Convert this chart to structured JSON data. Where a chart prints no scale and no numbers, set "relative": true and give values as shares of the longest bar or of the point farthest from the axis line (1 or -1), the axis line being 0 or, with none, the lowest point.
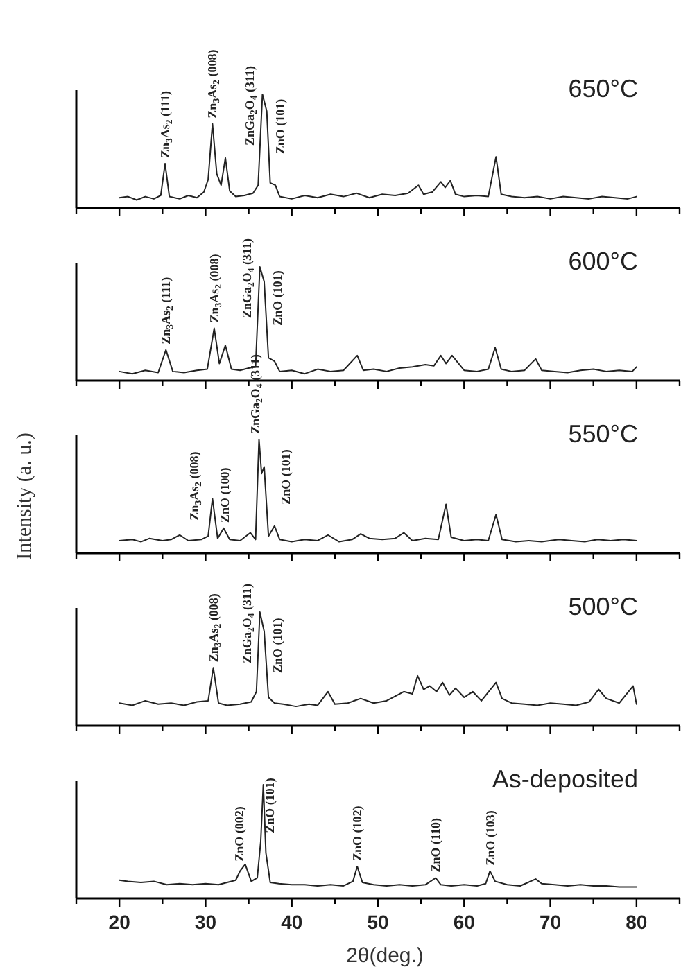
{
  "chart_data": [
    {
      "type": "line",
      "relative": true,
      "title": "650°C",
      "tick_labels": false,
      "xlim": [
        15,
        85
      ],
      "xticks": [
        {
          "value": 15,
          "label": null
        },
        20,
        {
          "value": 25,
          "label": null
        },
        30,
        {
          "value": 35,
          "label": null
        },
        40,
        {
          "value": 45,
          "label": null
        },
        50,
        {
          "value": 55,
          "label": null
        },
        60,
        {
          "value": 65,
          "label": null
        },
        70,
        {
          "value": 75,
          "label": null
        },
        80,
        {
          "value": 85,
          "label": null
        }
      ],
      "x": [
        20,
        21,
        22,
        23,
        24,
        24.8,
        25.3,
        25.8,
        27,
        28,
        29,
        29.8,
        30.3,
        30.8,
        31.3,
        31.8,
        32.3,
        32.8,
        33.5,
        34.5,
        35.5,
        36.1,
        36.6,
        37.1,
        37.5,
        38.1,
        38.6,
        40,
        41.5,
        43,
        44.5,
        46,
        47.5,
        49,
        50.5,
        52,
        53.5,
        54.7,
        55.3,
        56.3,
        57.3,
        57.8,
        58.4,
        59,
        60,
        61.5,
        62.8,
        63.7,
        64.3,
        65.5,
        67,
        68.5,
        70,
        71.5,
        73,
        74.5,
        76,
        77.5,
        79,
        80
      ],
      "series": [
        {
          "color": "#222222",
          "values": [
            0.09,
            0.1,
            0.07,
            0.1,
            0.08,
            0.11,
            0.39,
            0.1,
            0.08,
            0.11,
            0.09,
            0.14,
            0.25,
            0.74,
            0.3,
            0.2,
            0.44,
            0.15,
            0.1,
            0.11,
            0.13,
            0.2,
            1,
            0.85,
            0.22,
            0.2,
            0.1,
            0.08,
            0.11,
            0.09,
            0.12,
            0.1,
            0.13,
            0.09,
            0.12,
            0.11,
            0.13,
            0.2,
            0.12,
            0.14,
            0.23,
            0.18,
            0.24,
            0.12,
            0.1,
            0.11,
            0.1,
            0.45,
            0.12,
            0.1,
            0.09,
            0.1,
            0.08,
            0.1,
            0.09,
            0.08,
            0.1,
            0.09,
            0.08,
            0.1
          ]
        }
      ],
      "annotations": [
        {
          "text": "Zn$_{3}$As$_{2}$ (111)",
          "x": 25.3,
          "y": 0.39
        },
        {
          "text": "Zn$_{3}$As$_{2}$ (008)",
          "x": 30.8,
          "y": 0.74
        },
        {
          "text": "ZnGa$_{2}$O$_{4}$ (311)",
          "x": 36.6,
          "y": 1
        },
        {
          "text": "ZnO (101)",
          "x": 37.1,
          "y": 0.85
        }
      ]
    },
    {
      "type": "line",
      "relative": true,
      "title": "600°C",
      "tick_labels": false,
      "xlim": [
        15,
        85
      ],
      "xticks": [
        {
          "value": 15,
          "label": null
        },
        20,
        {
          "value": 25,
          "label": null
        },
        30,
        {
          "value": 35,
          "label": null
        },
        40,
        {
          "value": 45,
          "label": null
        },
        50,
        {
          "value": 55,
          "label": null
        },
        60,
        {
          "value": 65,
          "label": null
        },
        70,
        {
          "value": 75,
          "label": null
        },
        80,
        {
          "value": 85,
          "label": null
        }
      ],
      "x": [
        20,
        21.5,
        23,
        24.5,
        25.4,
        26.2,
        27.5,
        29,
        30.2,
        31,
        31.6,
        32.3,
        33,
        34,
        35,
        35.8,
        36.3,
        36.8,
        37.3,
        38,
        38.6,
        40,
        41.5,
        43,
        44.5,
        46,
        47.6,
        48.3,
        49.5,
        51,
        52.5,
        54,
        55.5,
        56.5,
        57.3,
        57.9,
        58.6,
        60,
        61.5,
        62.8,
        63.6,
        64.3,
        65.5,
        67,
        68.3,
        69,
        70.5,
        72,
        73.5,
        75,
        76.5,
        78,
        79.5,
        80
      ],
      "series": [
        {
          "color": "#222222",
          "values": [
            0.08,
            0.06,
            0.09,
            0.07,
            0.27,
            0.08,
            0.07,
            0.09,
            0.1,
            0.46,
            0.15,
            0.31,
            0.1,
            0.09,
            0.11,
            0.12,
            1,
            0.87,
            0.2,
            0.17,
            0.08,
            0.09,
            0.06,
            0.1,
            0.08,
            0.09,
            0.22,
            0.09,
            0.1,
            0.08,
            0.11,
            0.12,
            0.14,
            0.13,
            0.22,
            0.15,
            0.22,
            0.09,
            0.08,
            0.1,
            0.29,
            0.1,
            0.08,
            0.09,
            0.19,
            0.09,
            0.08,
            0.07,
            0.09,
            0.1,
            0.08,
            0.09,
            0.08,
            0.12
          ]
        }
      ],
      "annotations": [
        {
          "text": "Zn$_{3}$As$_{2}$ (111)",
          "x": 25.4,
          "y": 0.27
        },
        {
          "text": "Zn$_{3}$As$_{2}$ (008)",
          "x": 31,
          "y": 0.46
        },
        {
          "text": "ZnGa$_{2}$O$_{4}$ (311)",
          "x": 36.3,
          "y": 1
        },
        {
          "text": "ZnO (101)",
          "x": 36.8,
          "y": 0.87
        }
      ]
    },
    {
      "type": "line",
      "relative": true,
      "title": "550°C",
      "ylabel": "Intensity (a. u.)",
      "tick_labels": false,
      "xlim": [
        15,
        85
      ],
      "xticks": [
        {
          "value": 15,
          "label": null
        },
        20,
        {
          "value": 25,
          "label": null
        },
        30,
        {
          "value": 35,
          "label": null
        },
        40,
        {
          "value": 45,
          "label": null
        },
        50,
        {
          "value": 55,
          "label": null
        },
        60,
        {
          "value": 65,
          "label": null
        },
        70,
        {
          "value": 75,
          "label": null
        },
        80,
        {
          "value": 85,
          "label": null
        }
      ],
      "x": [
        20,
        21.5,
        22.5,
        23.5,
        25,
        26,
        27,
        28,
        29.5,
        30.3,
        30.8,
        31.4,
        32.1,
        32.8,
        34,
        35.2,
        35.8,
        36.2,
        36.5,
        36.8,
        37.3,
        38,
        38.6,
        40,
        41.5,
        43,
        44.2,
        45.5,
        47,
        48,
        49,
        50.5,
        52,
        53,
        54,
        55.5,
        57,
        57.9,
        58.5,
        60,
        61.5,
        62.8,
        63.7,
        64.4,
        66,
        67.5,
        69,
        71,
        72.5,
        74,
        75.5,
        77,
        78.5,
        80
      ],
      "series": [
        {
          "color": "#222222",
          "values": [
            0.11,
            0.12,
            0.1,
            0.13,
            0.11,
            0.12,
            0.16,
            0.11,
            0.12,
            0.15,
            0.48,
            0.13,
            0.22,
            0.12,
            0.11,
            0.18,
            0.12,
            1,
            0.7,
            0.76,
            0.15,
            0.24,
            0.12,
            0.1,
            0.12,
            0.11,
            0.16,
            0.1,
            0.12,
            0.17,
            0.13,
            0.12,
            0.13,
            0.18,
            0.11,
            0.13,
            0.12,
            0.43,
            0.14,
            0.11,
            0.12,
            0.11,
            0.34,
            0.12,
            0.1,
            0.11,
            0.1,
            0.12,
            0.11,
            0.1,
            0.12,
            0.11,
            0.12,
            0.11
          ]
        }
      ],
      "annotations": [
        {
          "text": "Zn$_{3}$As$_{2}$ (008)",
          "x": 30.8,
          "y": 0.48
        },
        {
          "text": "ZnO (100)",
          "x": 32.1,
          "y": 0.22
        },
        {
          "text": "ZnGa$_{2}$O$_{4}$ (311)",
          "x": 36.2,
          "y": 1
        },
        {
          "text": "ZnO (101)",
          "x": 36.8,
          "y": 0.76
        }
      ]
    },
    {
      "type": "line",
      "relative": true,
      "title": "500°C",
      "tick_labels": false,
      "xlim": [
        15,
        85
      ],
      "xticks": [
        {
          "value": 15,
          "label": null
        },
        20,
        {
          "value": 25,
          "label": null
        },
        30,
        {
          "value": 35,
          "label": null
        },
        40,
        {
          "value": 45,
          "label": null
        },
        50,
        {
          "value": 55,
          "label": null
        },
        60,
        {
          "value": 65,
          "label": null
        },
        70,
        {
          "value": 75,
          "label": null
        },
        80,
        {
          "value": 85,
          "label": null
        }
      ],
      "x": [
        20,
        21.5,
        23,
        24.5,
        26,
        27.5,
        29,
        30.3,
        30.9,
        31.5,
        32.5,
        34,
        35.3,
        35.9,
        36.3,
        36.8,
        37.3,
        38,
        39,
        40.5,
        42,
        43,
        44.2,
        45,
        46.5,
        48,
        49.5,
        51,
        52,
        53,
        54,
        54.6,
        55.3,
        56,
        56.8,
        57.5,
        58.3,
        59,
        60,
        61,
        62,
        63.7,
        64.4,
        65.5,
        67,
        68.5,
        70,
        71.5,
        73,
        74.5,
        75.6,
        76.5,
        78,
        79.6,
        80
      ],
      "series": [
        {
          "color": "#222222",
          "values": [
            0.2,
            0.18,
            0.22,
            0.19,
            0.2,
            0.18,
            0.21,
            0.22,
            0.51,
            0.2,
            0.18,
            0.19,
            0.21,
            0.3,
            1,
            0.83,
            0.25,
            0.2,
            0.19,
            0.17,
            0.19,
            0.18,
            0.3,
            0.19,
            0.2,
            0.24,
            0.2,
            0.22,
            0.26,
            0.3,
            0.28,
            0.44,
            0.32,
            0.35,
            0.3,
            0.38,
            0.27,
            0.33,
            0.25,
            0.3,
            0.22,
            0.38,
            0.24,
            0.2,
            0.19,
            0.18,
            0.2,
            0.19,
            0.18,
            0.21,
            0.32,
            0.24,
            0.2,
            0.35,
            0.19
          ]
        }
      ],
      "annotations": [
        {
          "text": "Zn$_{3}$As$_{2}$ (008)",
          "x": 30.9,
          "y": 0.51
        },
        {
          "text": "ZnGa$_{2}$O$_{4}$ (311)",
          "x": 36.3,
          "y": 1
        },
        {
          "text": "ZnO (101)",
          "x": 36.8,
          "y": 0.83
        }
      ]
    },
    {
      "type": "line",
      "relative": true,
      "title": "As-deposited",
      "xlabel": "2θ(deg.)",
      "tick_labels": "x",
      "xlim": [
        15,
        85
      ],
      "xticks": [
        {
          "value": 15,
          "label": null
        },
        20,
        {
          "value": 25,
          "label": null
        },
        30,
        {
          "value": 35,
          "label": null
        },
        40,
        {
          "value": 45,
          "label": null
        },
        50,
        {
          "value": 55,
          "label": null
        },
        60,
        {
          "value": 65,
          "label": null
        },
        70,
        {
          "value": 75,
          "label": null
        },
        80,
        {
          "value": 85,
          "label": null
        }
      ],
      "x": [
        20,
        21,
        22.5,
        24,
        25.5,
        27,
        28.5,
        30,
        31.5,
        32.5,
        33.5,
        34,
        34.6,
        35.3,
        36,
        36.4,
        36.7,
        37,
        37.5,
        38.5,
        40,
        41.5,
        43,
        44.5,
        46,
        47.1,
        47.6,
        48.2,
        49.5,
        51,
        52.5,
        54,
        55.5,
        56.7,
        57.3,
        58.5,
        60,
        61.5,
        62.5,
        63,
        63.6,
        65,
        66.5,
        68.3,
        69,
        70.5,
        72,
        73.5,
        75,
        76.5,
        78,
        80
      ],
      "series": [
        {
          "color": "#222222",
          "values": [
            0.16,
            0.15,
            0.14,
            0.15,
            0.12,
            0.13,
            0.12,
            0.13,
            0.12,
            0.14,
            0.16,
            0.24,
            0.3,
            0.15,
            0.18,
            0.5,
            1,
            0.4,
            0.14,
            0.13,
            0.12,
            0.12,
            0.11,
            0.12,
            0.11,
            0.15,
            0.28,
            0.14,
            0.12,
            0.11,
            0.12,
            0.11,
            0.12,
            0.18,
            0.12,
            0.11,
            0.12,
            0.11,
            0.13,
            0.24,
            0.15,
            0.12,
            0.11,
            0.17,
            0.13,
            0.12,
            0.11,
            0.12,
            0.11,
            0.11,
            0.1,
            0.1
          ]
        }
      ],
      "annotations": [
        {
          "text": "ZnO (002)",
          "x": 34.6,
          "y": 0.3
        },
        {
          "text": "ZnO (101)",
          "x": 36.7,
          "y": 1
        },
        {
          "text": "ZnO (102)",
          "x": 47.6,
          "y": 0.28
        },
        {
          "text": "ZnO (110)",
          "x": 56.7,
          "y": 0.18
        },
        {
          "text": "ZnO (103)",
          "x": 63,
          "y": 0.24
        }
      ]
    }
  ]
}
